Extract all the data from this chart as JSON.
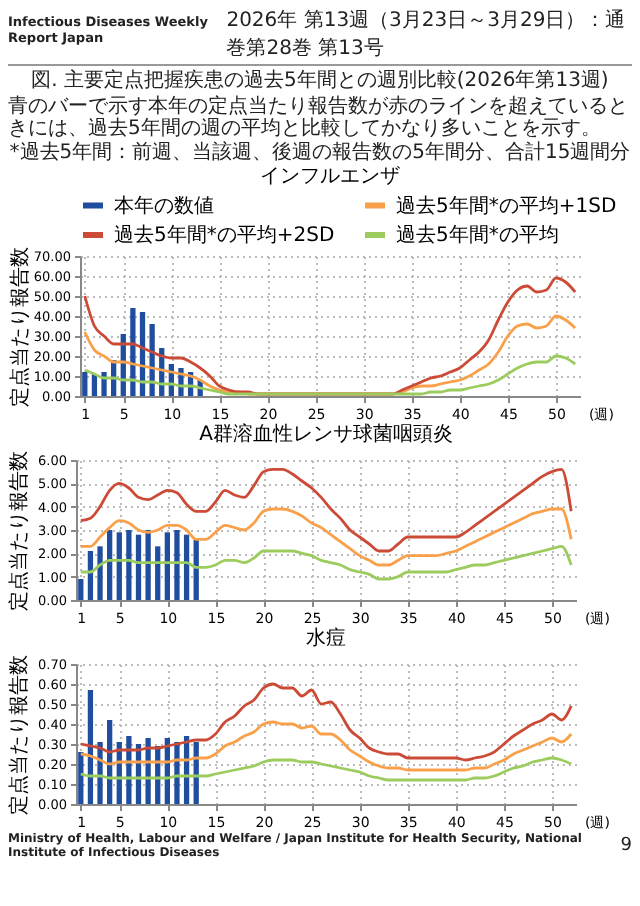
{
  "chart_data": [
    {
      "type": "other",
      "title": "図. 主要定点把握疾患の過去5年間との週別比較(2026年第13週)",
      "subtitle": "青のバーで示す本年の定点当たり報告数が赤のラインを超えているときには、過去5年間の週の平均と比較してかなり多いことを示す。",
      "annotations": [
        "Infectious Diseases Weekly Report Japan",
        "2026年 第13週（3月23日～3月29日）：通巻第28巻 第13号",
        "*過去5年間：前週、当該週、後週の報告数の5年間分、合計15週間分",
        "Ministry of Health, Labour and Welfare / Japan Institute for Health Security, National Institute of Infectious Diseases",
        "9"
      ]
    },
    {
      "type": "line",
      "title": "インフルエンザ",
      "xlabel": "(週)",
      "ylabel": "定点当たり報告数",
      "grid": true,
      "legend": "top",
      "xlim": [
        0.5,
        52.5
      ],
      "xticks": [
        1,
        5,
        10,
        15,
        20,
        25,
        30,
        35,
        40,
        45,
        50
      ],
      "ylim": [
        0,
        70
      ],
      "yticks": [
        {
          "value": 0,
          "label": "0.00"
        },
        {
          "value": 10,
          "label": "10.00"
        },
        {
          "value": 20,
          "label": "20.00"
        },
        {
          "value": 30,
          "label": "30.00"
        },
        {
          "value": 40,
          "label": "40.00"
        },
        {
          "value": 50,
          "label": "50.00"
        },
        {
          "value": 60,
          "label": "60.00"
        },
        {
          "value": 70,
          "label": "70.00"
        }
      ],
      "x": [
        1,
        2,
        3,
        4,
        5,
        6,
        7,
        8,
        9,
        10,
        11,
        12,
        13,
        14,
        15,
        16,
        17,
        18,
        19,
        20,
        21,
        22,
        23,
        24,
        25,
        26,
        27,
        28,
        29,
        30,
        31,
        32,
        33,
        34,
        35,
        36,
        37,
        38,
        39,
        40,
        41,
        42,
        43,
        44,
        45,
        46,
        47,
        48,
        49,
        50,
        51,
        52
      ],
      "series": [
        {
          "name": "本年の数値",
          "type": "bar",
          "color": "#1f4e9f",
          "x": [
            1,
            2,
            3,
            4,
            5,
            6,
            7,
            8,
            9,
            10,
            11,
            12,
            13
          ],
          "values": [
            12,
            11,
            12,
            18,
            31,
            44,
            42,
            36,
            24,
            16,
            14,
            12,
            8
          ]
        },
        {
          "name": "過去5年間*の平均+1SD",
          "color": "#f9a04a",
          "values": [
            32,
            23,
            20,
            17,
            17,
            16,
            15,
            14,
            13,
            12,
            11,
            10,
            8,
            5,
            3,
            2,
            2,
            1,
            1,
            1,
            1,
            1,
            1,
            1,
            1,
            1,
            1,
            1,
            1,
            1,
            1,
            1,
            1,
            2,
            4,
            5,
            5,
            6,
            7,
            8,
            10,
            13,
            16,
            22,
            30,
            35,
            36,
            34,
            35,
            40,
            38,
            34
          ]
        },
        {
          "name": "過去5年間*の平均+2SD",
          "color": "#cc4b37",
          "values": [
            50,
            35,
            30,
            26,
            26,
            26,
            24,
            22,
            20,
            19,
            19,
            17,
            14,
            10,
            5,
            3,
            2,
            2,
            1,
            1,
            1,
            1,
            1,
            1,
            1,
            1,
            1,
            1,
            1,
            1,
            1,
            1,
            1,
            3,
            5,
            7,
            9,
            10,
            12,
            14,
            18,
            22,
            28,
            38,
            47,
            53,
            55,
            52,
            53,
            59,
            57,
            52
          ]
        },
        {
          "name": "過去5年間*の平均",
          "color": "#9ccc5e",
          "values": [
            13,
            11,
            9,
            9,
            8,
            8,
            7,
            7,
            6,
            6,
            5,
            5,
            4,
            3,
            2,
            1,
            1,
            1,
            1,
            1,
            1,
            1,
            1,
            1,
            1,
            1,
            1,
            1,
            1,
            1,
            1,
            1,
            1,
            1,
            1,
            1,
            2,
            2,
            3,
            3,
            4,
            5,
            6,
            8,
            11,
            14,
            16,
            17,
            17,
            20,
            19,
            16
          ]
        }
      ]
    },
    {
      "type": "line",
      "title": "A群溶血性レンサ球菌咽頭炎",
      "xlabel": "(週)",
      "ylabel": "定点当たり報告数",
      "grid": true,
      "xlim": [
        0.5,
        52.5
      ],
      "xticks": [
        1,
        5,
        10,
        15,
        20,
        25,
        30,
        35,
        40,
        45,
        50
      ],
      "ylim": [
        0,
        6
      ],
      "yticks": [
        {
          "value": 0,
          "label": "0.00"
        },
        {
          "value": 1,
          "label": "1.00"
        },
        {
          "value": 2,
          "label": "2.00"
        },
        {
          "value": 3,
          "label": "3.00"
        },
        {
          "value": 4,
          "label": "4.00"
        },
        {
          "value": 5,
          "label": "5.00"
        },
        {
          "value": 6,
          "label": "6.00"
        }
      ],
      "x": [
        1,
        2,
        3,
        4,
        5,
        6,
        7,
        8,
        9,
        10,
        11,
        12,
        13,
        14,
        15,
        16,
        17,
        18,
        19,
        20,
        21,
        22,
        23,
        24,
        25,
        26,
        27,
        28,
        29,
        30,
        31,
        32,
        33,
        34,
        35,
        36,
        37,
        38,
        39,
        40,
        41,
        42,
        43,
        44,
        45,
        46,
        47,
        48,
        49,
        50,
        51,
        52
      ],
      "series": [
        {
          "type": "bar",
          "color": "#1f4e9f",
          "x": [
            1,
            2,
            3,
            4,
            5,
            6,
            7,
            8,
            9,
            10,
            11,
            12,
            13
          ],
          "values": [
            0.9,
            2.1,
            2.3,
            3.0,
            2.9,
            3.0,
            2.8,
            3.0,
            2.3,
            2.9,
            3.0,
            2.8,
            2.6
          ]
        },
        {
          "color": "#f9a04a",
          "values": [
            2.3,
            2.3,
            2.7,
            3.1,
            3.4,
            3.3,
            3.0,
            2.9,
            3.0,
            3.2,
            3.2,
            3.0,
            2.6,
            2.6,
            2.9,
            3.2,
            3.1,
            3.0,
            3.3,
            3.8,
            3.9,
            3.9,
            3.8,
            3.6,
            3.3,
            3.1,
            2.8,
            2.5,
            2.2,
            1.9,
            1.7,
            1.5,
            1.5,
            1.7,
            1.9,
            1.9,
            1.9,
            1.9,
            2.0,
            2.1,
            2.3,
            2.5,
            2.7,
            2.9,
            3.1,
            3.3,
            3.5,
            3.7,
            3.8,
            3.9,
            3.9,
            2.6
          ]
        },
        {
          "color": "#cc4b37",
          "values": [
            3.4,
            3.5,
            4.0,
            4.7,
            5.0,
            4.8,
            4.4,
            4.3,
            4.5,
            4.7,
            4.6,
            4.1,
            3.8,
            3.8,
            4.2,
            4.7,
            4.5,
            4.4,
            4.9,
            5.5,
            5.6,
            5.6,
            5.4,
            5.1,
            4.8,
            4.4,
            3.9,
            3.5,
            3.0,
            2.7,
            2.4,
            2.1,
            2.1,
            2.4,
            2.7,
            2.7,
            2.7,
            2.7,
            2.7,
            2.7,
            2.9,
            3.2,
            3.5,
            3.8,
            4.1,
            4.4,
            4.7,
            5.0,
            5.3,
            5.5,
            5.6,
            3.8
          ]
        },
        {
          "color": "#9ccc5e",
          "values": [
            1.2,
            1.2,
            1.5,
            1.7,
            1.7,
            1.7,
            1.6,
            1.6,
            1.6,
            1.6,
            1.6,
            1.6,
            1.4,
            1.4,
            1.5,
            1.7,
            1.7,
            1.6,
            1.8,
            2.1,
            2.1,
            2.1,
            2.1,
            2.0,
            1.9,
            1.7,
            1.6,
            1.5,
            1.3,
            1.2,
            1.1,
            0.9,
            0.9,
            1.0,
            1.2,
            1.2,
            1.2,
            1.2,
            1.2,
            1.3,
            1.4,
            1.5,
            1.5,
            1.6,
            1.7,
            1.8,
            1.9,
            2.0,
            2.1,
            2.2,
            2.3,
            1.5
          ]
        }
      ]
    },
    {
      "type": "line",
      "title": "水痘",
      "xlabel": "(週)",
      "ylabel": "定点当たり報告数",
      "grid": true,
      "xlim": [
        0.5,
        52.5
      ],
      "xticks": [
        1,
        5,
        10,
        15,
        20,
        25,
        30,
        35,
        40,
        45,
        50
      ],
      "ylim": [
        0,
        0.7
      ],
      "yticks": [
        {
          "value": 0,
          "label": "0.00"
        },
        {
          "value": 0.1,
          "label": "0.10"
        },
        {
          "value": 0.2,
          "label": "0.20"
        },
        {
          "value": 0.3,
          "label": "0.30"
        },
        {
          "value": 0.4,
          "label": "0.40"
        },
        {
          "value": 0.5,
          "label": "0.50"
        },
        {
          "value": 0.6,
          "label": "0.60"
        },
        {
          "value": 0.7,
          "label": "0.70"
        }
      ],
      "x": [
        1,
        2,
        3,
        4,
        5,
        6,
        7,
        8,
        9,
        10,
        11,
        12,
        13,
        14,
        15,
        16,
        17,
        18,
        19,
        20,
        21,
        22,
        23,
        24,
        25,
        26,
        27,
        28,
        29,
        30,
        31,
        32,
        33,
        34,
        35,
        36,
        37,
        38,
        39,
        40,
        41,
        42,
        43,
        44,
        45,
        46,
        47,
        48,
        49,
        50,
        51,
        52
      ],
      "series": [
        {
          "type": "bar",
          "color": "#1f4e9f",
          "x": [
            1,
            2,
            3,
            4,
            5,
            6,
            7,
            8,
            9,
            10,
            11,
            12,
            13
          ],
          "values": [
            0.26,
            0.57,
            0.31,
            0.42,
            0.31,
            0.34,
            0.3,
            0.33,
            0.29,
            0.33,
            0.31,
            0.34,
            0.31
          ]
        },
        {
          "color": "#f9a04a",
          "values": [
            0.25,
            0.24,
            0.22,
            0.2,
            0.21,
            0.21,
            0.21,
            0.21,
            0.21,
            0.21,
            0.22,
            0.22,
            0.23,
            0.23,
            0.25,
            0.29,
            0.31,
            0.34,
            0.36,
            0.4,
            0.41,
            0.4,
            0.4,
            0.38,
            0.39,
            0.35,
            0.35,
            0.32,
            0.27,
            0.24,
            0.21,
            0.19,
            0.18,
            0.18,
            0.17,
            0.17,
            0.17,
            0.17,
            0.17,
            0.17,
            0.17,
            0.18,
            0.18,
            0.2,
            0.22,
            0.25,
            0.27,
            0.29,
            0.31,
            0.33,
            0.31,
            0.35
          ]
        },
        {
          "color": "#cc4b37",
          "values": [
            0.3,
            0.29,
            0.28,
            0.26,
            0.27,
            0.27,
            0.27,
            0.28,
            0.28,
            0.29,
            0.3,
            0.31,
            0.32,
            0.32,
            0.35,
            0.41,
            0.44,
            0.49,
            0.52,
            0.58,
            0.6,
            0.58,
            0.58,
            0.54,
            0.57,
            0.5,
            0.51,
            0.45,
            0.37,
            0.33,
            0.28,
            0.26,
            0.25,
            0.25,
            0.23,
            0.23,
            0.23,
            0.23,
            0.23,
            0.23,
            0.22,
            0.23,
            0.24,
            0.26,
            0.3,
            0.34,
            0.37,
            0.4,
            0.42,
            0.45,
            0.42,
            0.49
          ]
        },
        {
          "color": "#9ccc5e",
          "values": [
            0.15,
            0.14,
            0.14,
            0.13,
            0.13,
            0.13,
            0.13,
            0.13,
            0.13,
            0.13,
            0.14,
            0.14,
            0.14,
            0.14,
            0.15,
            0.16,
            0.17,
            0.18,
            0.19,
            0.21,
            0.22,
            0.22,
            0.22,
            0.21,
            0.21,
            0.2,
            0.19,
            0.18,
            0.17,
            0.16,
            0.14,
            0.13,
            0.12,
            0.12,
            0.12,
            0.12,
            0.12,
            0.12,
            0.12,
            0.12,
            0.12,
            0.13,
            0.13,
            0.14,
            0.16,
            0.18,
            0.19,
            0.21,
            0.22,
            0.23,
            0.22,
            0.2
          ]
        }
      ]
    }
  ]
}
